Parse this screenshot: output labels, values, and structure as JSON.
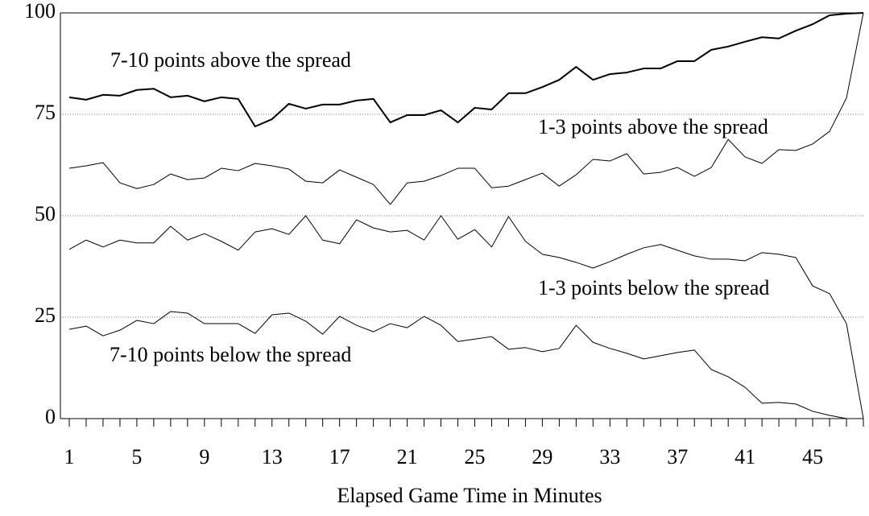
{
  "chart_data": {
    "type": "line",
    "xlabel": "Elapsed Game Time in Minutes",
    "categories": [
      1,
      null,
      null,
      null,
      5,
      null,
      null,
      null,
      9,
      null,
      null,
      null,
      13,
      null,
      null,
      null,
      17,
      null,
      null,
      null,
      21,
      null,
      null,
      null,
      25,
      null,
      null,
      null,
      29,
      null,
      null,
      null,
      33,
      null,
      null,
      null,
      37,
      null,
      null,
      null,
      41,
      null,
      null,
      null,
      45,
      null,
      null,
      null
    ],
    "ylim": [
      0,
      100
    ],
    "yticks": [
      0,
      25,
      50,
      75,
      100
    ],
    "grid": true,
    "series": [
      {
        "name": "7-10 points above the spread",
        "color": "#000000",
        "line_width": 2,
        "values": [
          79.2,
          78.6,
          79.8,
          79.6,
          81,
          81.3,
          79.2,
          79.6,
          78.2,
          79.2,
          78.8,
          72,
          73.8,
          77.6,
          76.4,
          77.4,
          77.4,
          78.4,
          78.8,
          73,
          74.8,
          74.8,
          76,
          73,
          76.6,
          76.2,
          80.2,
          80.2,
          81.7,
          83.5,
          86.7,
          83.5,
          84.9,
          85.3,
          86.3,
          86.3,
          88.1,
          88.1,
          90.9,
          91.7,
          92.9,
          94,
          93.7,
          95.6,
          97.2,
          99.4,
          99.8,
          100
        ]
      },
      {
        "name": "1-3 points above the spread",
        "color": "#000000",
        "line_width": 1,
        "values": [
          61.7,
          62.3,
          63.1,
          58.1,
          56.7,
          57.7,
          60.3,
          58.9,
          59.3,
          61.7,
          61.1,
          62.9,
          62.3,
          61.5,
          58.5,
          58.1,
          61.3,
          59.5,
          57.7,
          52.8,
          58.1,
          58.5,
          59.9,
          61.7,
          61.7,
          56.9,
          57.3,
          58.9,
          60.5,
          57.3,
          60.1,
          63.9,
          63.5,
          65.3,
          60.3,
          60.7,
          61.9,
          59.7,
          61.9,
          68.8,
          64.5,
          62.9,
          66.3,
          66.1,
          67.7,
          70.8,
          79,
          100
        ]
      },
      {
        "name": "1-3 points below the spread",
        "color": "#000000",
        "line_width": 1,
        "values": [
          41.7,
          44,
          42.3,
          44,
          43.3,
          43.3,
          47.4,
          44,
          45.6,
          43.7,
          41.5,
          46,
          46.8,
          45.4,
          50,
          44,
          43.1,
          49,
          47,
          46,
          46.4,
          44,
          50,
          44.2,
          46.6,
          42.3,
          49.8,
          43.7,
          40.5,
          39.7,
          38.5,
          37.1,
          38.7,
          40.5,
          42.1,
          42.9,
          41.5,
          40.1,
          39.3,
          39.3,
          38.9,
          40.9,
          40.5,
          39.7,
          32.7,
          30.8,
          23.4,
          0
        ]
      },
      {
        "name": "7-10 points below the spread",
        "color": "#000000",
        "line_width": 1,
        "values": [
          22,
          22.8,
          20.4,
          21.8,
          24.2,
          23.4,
          26.4,
          26,
          23.4,
          23.4,
          23.4,
          21,
          25.6,
          26,
          24,
          20.8,
          25.2,
          23,
          21.4,
          23.4,
          22.4,
          25.2,
          23,
          19,
          19.6,
          20.2,
          17.1,
          17.5,
          16.5,
          17.3,
          23,
          18.8,
          17.3,
          16.1,
          14.7,
          15.5,
          16.3,
          16.9,
          12.1,
          10.3,
          7.7,
          3.8,
          4,
          3.6,
          1.8,
          0.8,
          0,
          0
        ]
      }
    ]
  }
}
